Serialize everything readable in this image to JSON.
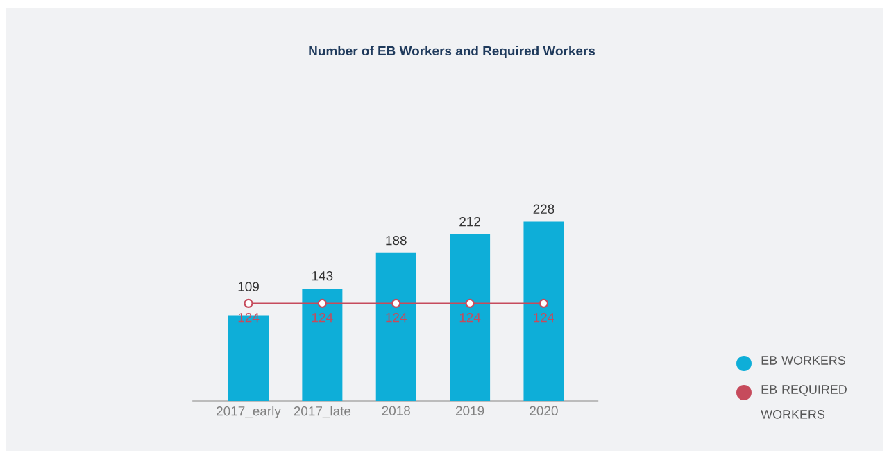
{
  "chart_data": {
    "type": "bar",
    "title": "Number of EB Workers and Required Workers",
    "categories": [
      "2017_early",
      "2017_late",
      "2018",
      "2019",
      "2020"
    ],
    "series": [
      {
        "name": "EB WORKERS",
        "color": "#0eaed8",
        "values": [
          109,
          143,
          188,
          212,
          228
        ]
      },
      {
        "name": "EB REQUIRED WORKERS",
        "type": "line",
        "color": "#c64b5c",
        "values": [
          124,
          124,
          124,
          124,
          124
        ]
      }
    ],
    "tick_labels": "x",
    "data_labels": true,
    "legend": "bottom right",
    "marker": "circle",
    "grid": false
  }
}
